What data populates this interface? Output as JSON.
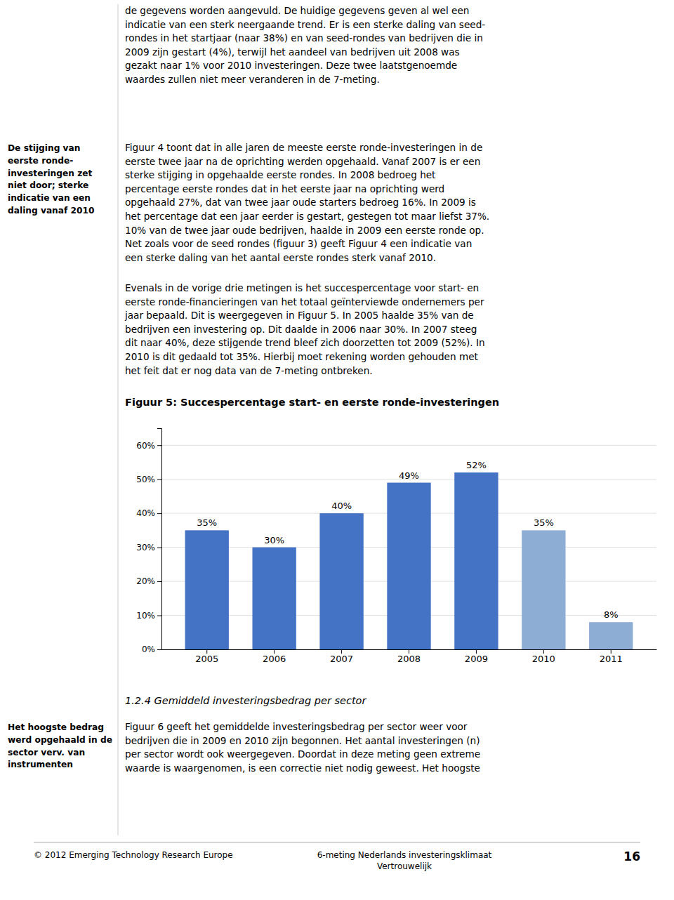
{
  "page": {
    "text_top": [
      "de gegevens worden aangevuld. De huidige gegevens geven al wel een",
      "indicatie van een sterk neergaande trend. Er is een sterke daling van seed-",
      "rondes in het startjaar (naar 38%) en van seed-rondes van bedrijven die in",
      "2009 zijn gestart (4%), terwijl het aandeel van bedrijven uit 2008 was",
      "gezakt naar 1% voor 2010 investeringen. Deze twee laatstgenoemde",
      "waardes zullen niet meer veranderen in de 7-meting."
    ],
    "note_1": [
      "De stijging van",
      "eerste ronde-",
      "investeringen zet",
      "niet door; sterke",
      "indicatie van een",
      "daling vanaf 2010"
    ],
    "text_figure_4": [
      "Figuur 4 toont dat in alle jaren de meeste eerste ronde-investeringen in de",
      "eerste twee jaar na de oprichting werden opgehaald. Vanaf 2007 is er een",
      "sterke stijging in opgehaalde eerste rondes. In 2008 bedroeg het",
      "percentage eerste rondes dat in het eerste jaar na oprichting werd",
      "opgehaald 27%, dat van twee jaar oude starters bedroeg 16%. In 2009 is",
      "het percentage dat een jaar eerder is gestart, gestegen tot maar liefst 37%.",
      "10% van de twee jaar oude bedrijven, haalde in 2009 een eerste ronde op.",
      "Net zoals voor de seed rondes (figuur 3) geeft Figuur 4 een indicatie van",
      "een sterke daling van het aantal eerste rondes sterk vanaf 2010."
    ],
    "text_figure_5": [
      "Evenals in de vorige drie metingen is het succespercentage voor start- en",
      "eerste ronde-financieringen van het totaal geïnterviewde ondernemers per",
      "jaar bepaald. Dit is weergegeven in Figuur 5. In 2005 haalde 35% van de",
      "bedrijven een investering op. Dit daalde in 2006 naar 30%. In 2007 steeg",
      "dit naar 40%, deze stijgende trend bleef zich doorzetten tot 2009 (52%). In",
      "2010 is dit gedaald tot 35%. Hierbij moet rekening worden gehouden met",
      "het feit dat er nog data van de 7-meting ontbreken."
    ],
    "heading": "1.2.4 Gemiddeld investeringsbedrag per sector",
    "text_bottom": [
      "Figuur 6 geeft het gemiddelde investeringsbedrag per sector weer voor",
      "bedrijven die in 2009 en 2010 zijn begonnen. Het aantal investeringen (n)",
      "per sector wordt ook weergegeven. Doordat in deze meting geen extreme",
      "waarde is waargenomen, is een correctie niet nodig geweest. Het hoogste"
    ],
    "note_2": [
      "Het hoogste bedrag",
      "werd opgehaald in de",
      "sector verv. van",
      "instrumenten"
    ],
    "footer_left": "© 2012 Emerging Technology Research Europe",
    "footer_center": [
      "6-meting Nederlands investeringsklimaat",
      "Vertrouwelijk"
    ],
    "footer_right": "16"
  },
  "chart_data": {
    "type": "bar",
    "title": "Figuur 5: Succespercentage start- en eerste ronde-investeringen",
    "categories": [
      "2005",
      "2006",
      "2007",
      "2008",
      "2009",
      "2010",
      "2011"
    ],
    "values": [
      0.35,
      0.3,
      0.4,
      0.49,
      0.52,
      0.35,
      0.08
    ],
    "value_labels": [
      "35%",
      "30%",
      "40%",
      "49%",
      "52%",
      "35%",
      "8%"
    ],
    "colors": [
      "#4472C4",
      "#4472C4",
      "#4472C4",
      "#4472C4",
      "#4472C4",
      "#8EADD4",
      "#8EADD4"
    ],
    "ylim": [
      0,
      0.65
    ],
    "yticks": [
      {
        "value": 0.0,
        "label": "0%"
      },
      {
        "value": 0.1,
        "label": "10%"
      },
      {
        "value": 0.2,
        "label": "20%"
      },
      {
        "value": 0.3,
        "label": "30%"
      },
      {
        "value": 0.4,
        "label": "40%"
      },
      {
        "value": 0.5,
        "label": "50%"
      },
      {
        "value": 0.6,
        "label": "60%"
      }
    ],
    "grid": true,
    "data_labels": true
  }
}
